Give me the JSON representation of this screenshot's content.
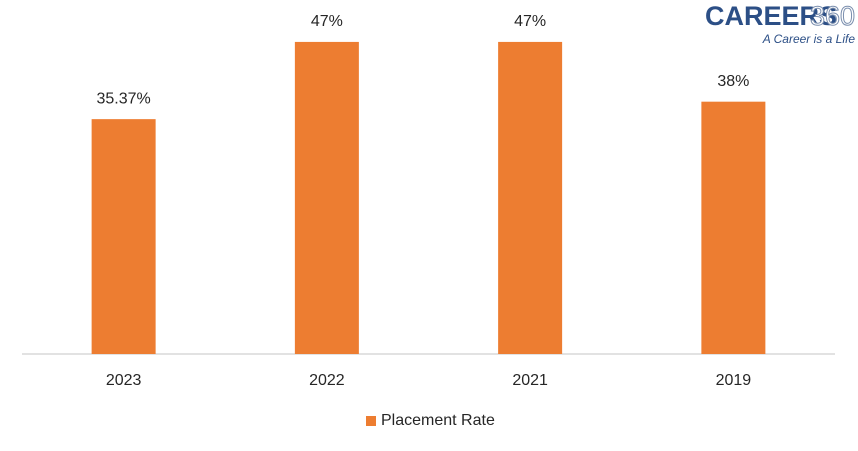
{
  "chart_data": {
    "type": "bar",
    "categories": [
      "2023",
      "2022",
      "2021",
      "2019"
    ],
    "series": [
      {
        "name": "Placement Rate",
        "color": "#ed7d31",
        "values": [
          35.37,
          47,
          47,
          38
        ],
        "value_labels": [
          "35.37%",
          "47%",
          "47%",
          "38%"
        ]
      }
    ],
    "ylim": [
      0,
      50
    ],
    "grid": false,
    "legend": "bottom"
  },
  "logo": {
    "word": "CAREERS",
    "number": "360",
    "tagline": "A Career is a Life"
  }
}
